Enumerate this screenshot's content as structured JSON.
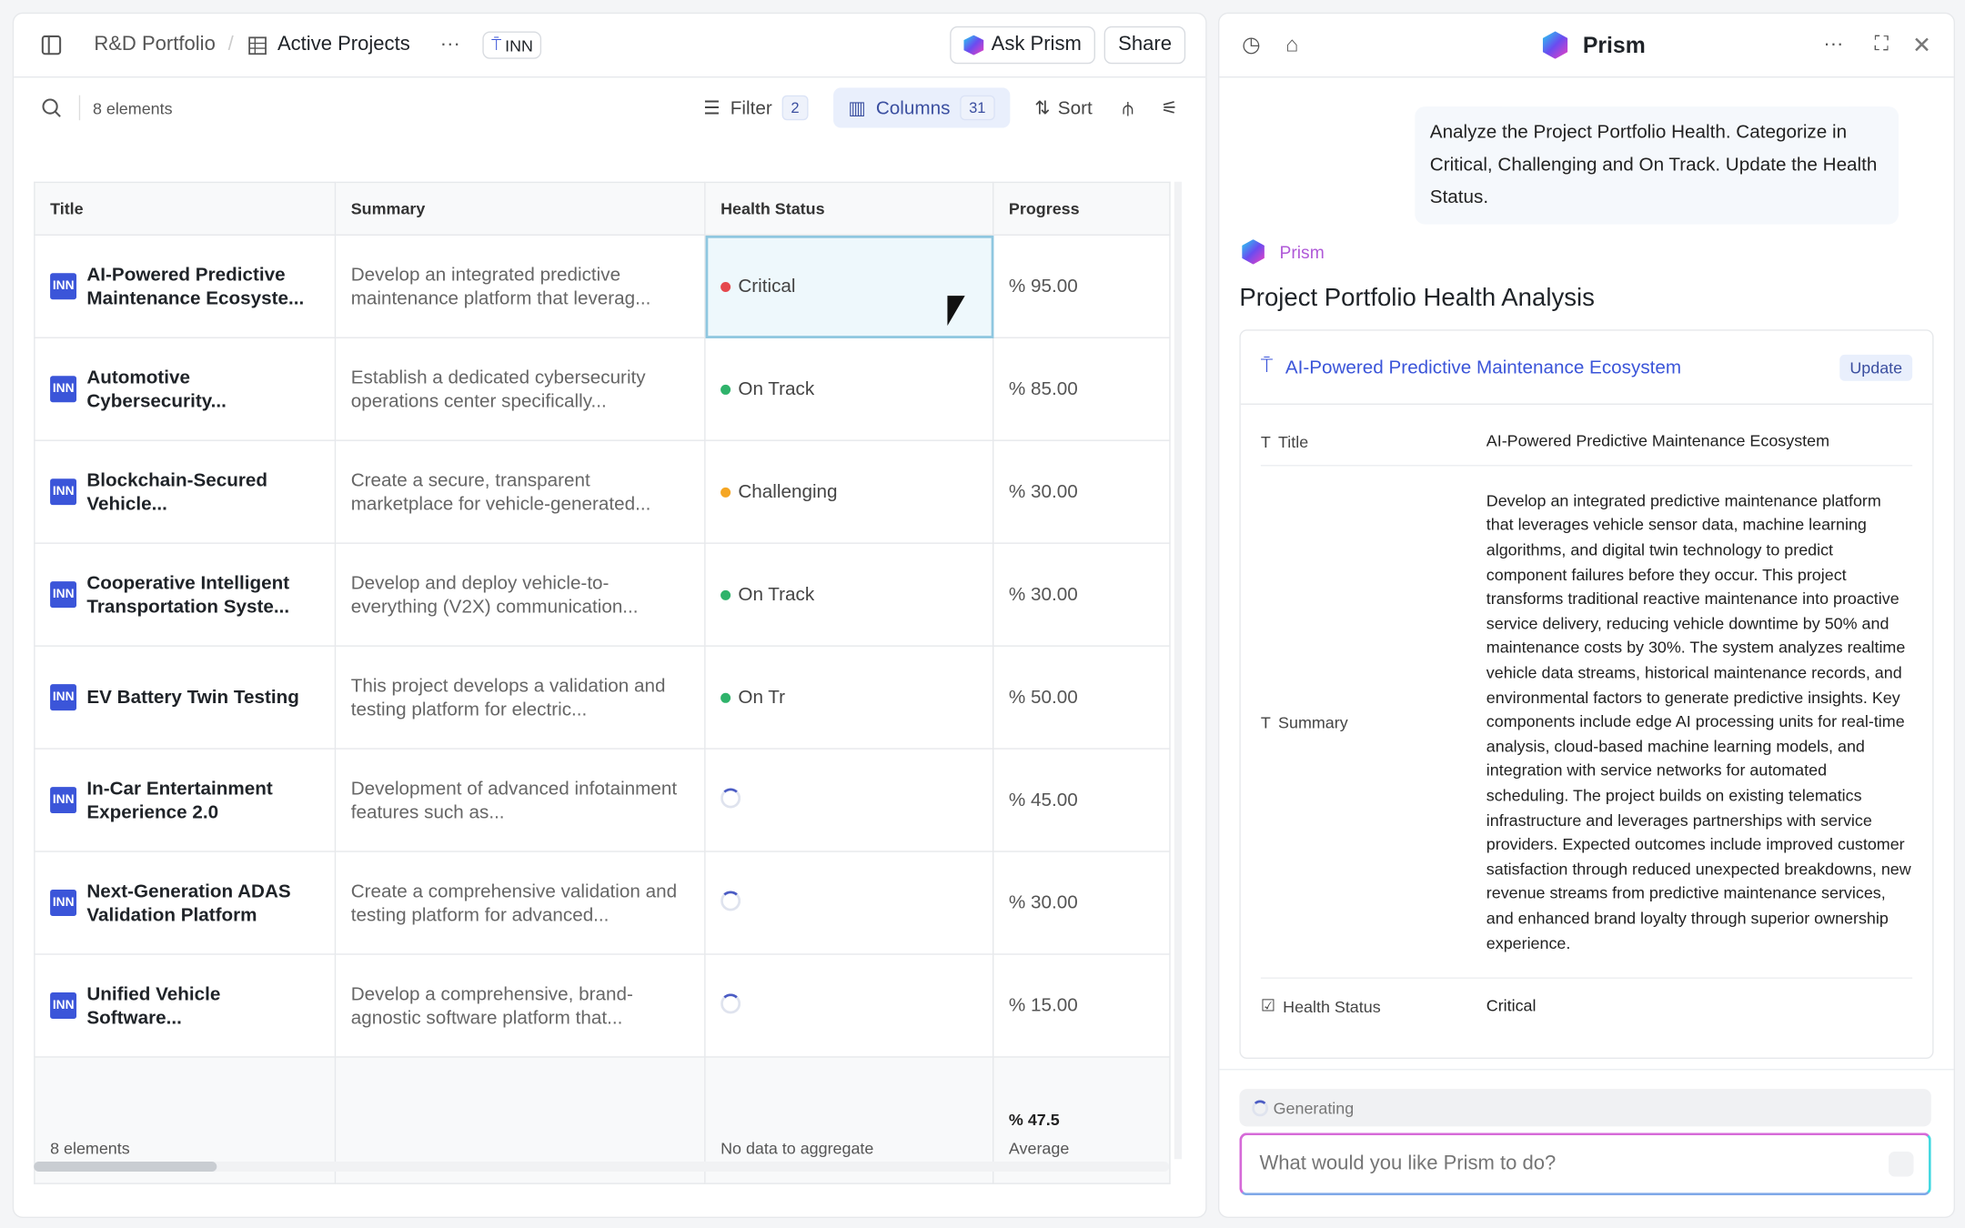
{
  "header": {
    "breadcrumb_root": "R&D Portfolio",
    "breadcrumb_current": "Active Projects",
    "tag": "INN",
    "ask_label": "Ask Prism",
    "share_label": "Share"
  },
  "toolbar": {
    "count": "8 elements",
    "filter_label": "Filter",
    "filter_count": "2",
    "columns_label": "Columns",
    "columns_count": "31",
    "sort_label": "Sort"
  },
  "table": {
    "columns": [
      "Title",
      "Summary",
      "Health Status",
      "Progress"
    ],
    "rows": [
      {
        "tag": "INN",
        "title": "AI-Powered Predictive Maintenance Ecosyste...",
        "summary": "Develop an integrated predictive maintenance platform that leverag...",
        "status": "Critical",
        "status_color": "#e5484d",
        "progress": "% 95.00"
      },
      {
        "tag": "INN",
        "title": "Automotive Cybersecurity...",
        "summary": "Establish a dedicated cybersecurity operations center specifically...",
        "status": "On Track",
        "status_color": "#2fb36b",
        "progress": "% 85.00"
      },
      {
        "tag": "INN",
        "title": "Blockchain-Secured Vehicle...",
        "summary": "Create a secure, transparent marketplace for vehicle-generated...",
        "status": "Challenging",
        "status_color": "#f5a623",
        "progress": "% 30.00"
      },
      {
        "tag": "INN",
        "title": "Cooperative Intelligent Transportation Syste...",
        "summary": "Develop and deploy vehicle-to-everything (V2X) communication...",
        "status": "On Track",
        "status_color": "#2fb36b",
        "progress": "% 30.00"
      },
      {
        "tag": "INN",
        "title": "EV Battery Twin Testing",
        "summary": "This project develops a validation and testing platform for electric...",
        "status": "On Tr",
        "status_color": "#2fb36b",
        "progress": "% 50.00"
      },
      {
        "tag": "INN",
        "title": "In-Car Entertainment Experience 2.0",
        "summary": "Development of advanced infotainment features such as...",
        "status": "",
        "status_color": "",
        "progress": "% 45.00"
      },
      {
        "tag": "INN",
        "title": "Next-Generation ADAS Validation Platform",
        "summary": "Create a comprehensive validation and testing platform for advanced...",
        "status": "",
        "status_color": "",
        "progress": "% 30.00"
      },
      {
        "tag": "INN",
        "title": "Unified Vehicle Software...",
        "summary": "Develop a comprehensive, brand-agnostic software platform that...",
        "status": "",
        "status_color": "",
        "progress": "% 15.00"
      }
    ],
    "footer": {
      "count": "8 elements",
      "status": "No data to aggregate",
      "progress_value": "% 47.5",
      "progress_label": "Average"
    }
  },
  "prism": {
    "title": "Prism",
    "user_message": "Analyze the Project Portfolio Health. Categorize in Critical, Challenging and On Track. Update the Health Status.",
    "assistant_name": "Prism",
    "heading": "Project Portfolio Health Analysis",
    "card": {
      "title": "AI-Powered Predictive Maintenance Ecosystem",
      "update_label": "Update",
      "fields": [
        {
          "label": "Title",
          "value": "AI-Powered Predictive Maintenance Ecosystem"
        },
        {
          "label": "Summary",
          "value": "Develop an integrated predictive maintenance platform that leverages vehicle sensor data, machine learning algorithms, and digital twin technology to predict component failures before they occur. This project transforms traditional reactive maintenance into proactive service delivery, reducing vehicle downtime by 50% and maintenance costs by 30%. The system analyzes realtime vehicle data streams, historical maintenance records, and environmental factors to generate predictive insights. Key components include edge AI processing units for real-time analysis, cloud-based machine learning models, and integration with service networks for automated scheduling. The project builds on existing telematics infrastructure and leverages partnerships with service providers. Expected outcomes include improved customer satisfaction through reduced unexpected breakdowns, new revenue streams from predictive maintenance services, and enhanced brand loyalty through superior ownership experience."
        },
        {
          "label": "Health Status",
          "value": "Critical"
        }
      ]
    },
    "generating": "Generating",
    "input_placeholder": "What would you like Prism to do?"
  }
}
